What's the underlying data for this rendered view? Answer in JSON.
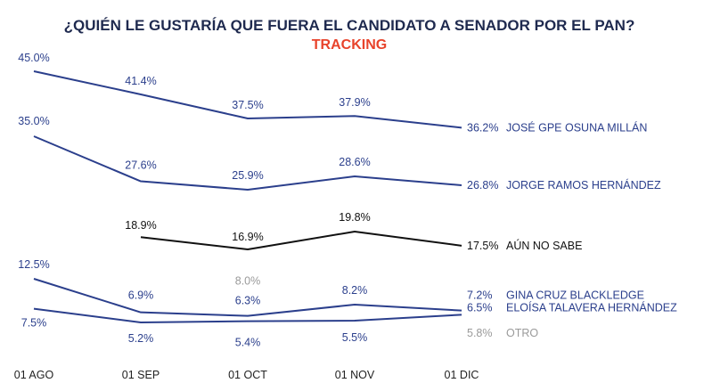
{
  "chart_data": {
    "type": "line",
    "title": "¿QUIÉN LE GUSTARÍA QUE FUERA EL CANDIDATO A SENADOR POR EL PAN?",
    "subtitle": "TRACKING",
    "categories": [
      "01 AGO",
      "01 SEP",
      "01 OCT",
      "01 NOV",
      "01 DIC"
    ],
    "ylim": [
      0,
      50
    ],
    "grid": false,
    "series": [
      {
        "name": "JOSÉ GPE OSUNA MILLÁN",
        "color": "#2b3f8c",
        "values": [
          45.0,
          41.4,
          37.5,
          37.9,
          36.2
        ],
        "labels": [
          "45.0%",
          "41.4%",
          "37.5%",
          "37.9%",
          "36.2%"
        ]
      },
      {
        "name": "JORGE RAMOS HERNÁNDEZ",
        "color": "#2b3f8c",
        "values": [
          35.0,
          27.6,
          25.9,
          28.6,
          26.8
        ],
        "labels": [
          "35.0%",
          "27.6%",
          "25.9%",
          "28.6%",
          "26.8%"
        ]
      },
      {
        "name": "AÚN NO SABE",
        "color": "#111111",
        "values": [
          null,
          18.9,
          16.9,
          19.8,
          17.5
        ],
        "labels": [
          null,
          "18.9%",
          "16.9%",
          "19.8%",
          "17.5%"
        ]
      },
      {
        "name": "GINA CRUZ  BLACKLEDGE",
        "color": "#2b3f8c",
        "values": [
          12.5,
          6.9,
          6.3,
          8.2,
          7.2
        ],
        "labels": [
          "12.5%",
          "6.9%",
          "6.3%",
          "8.2%",
          "7.2%"
        ]
      },
      {
        "name": "ELOÍSA TALAVERA HERNÁNDEZ",
        "color": "#2b3f8c",
        "values": [
          7.5,
          5.2,
          5.4,
          5.5,
          6.5
        ],
        "labels": [
          "7.5%",
          "5.2%",
          "5.4%",
          "5.5%",
          "6.5%"
        ]
      },
      {
        "name": "OTRO",
        "color": "#9a9a9a",
        "values": [
          null,
          null,
          8.0,
          null,
          5.8
        ],
        "labels": [
          null,
          null,
          "8.0%",
          null,
          "5.8%"
        ]
      }
    ]
  }
}
